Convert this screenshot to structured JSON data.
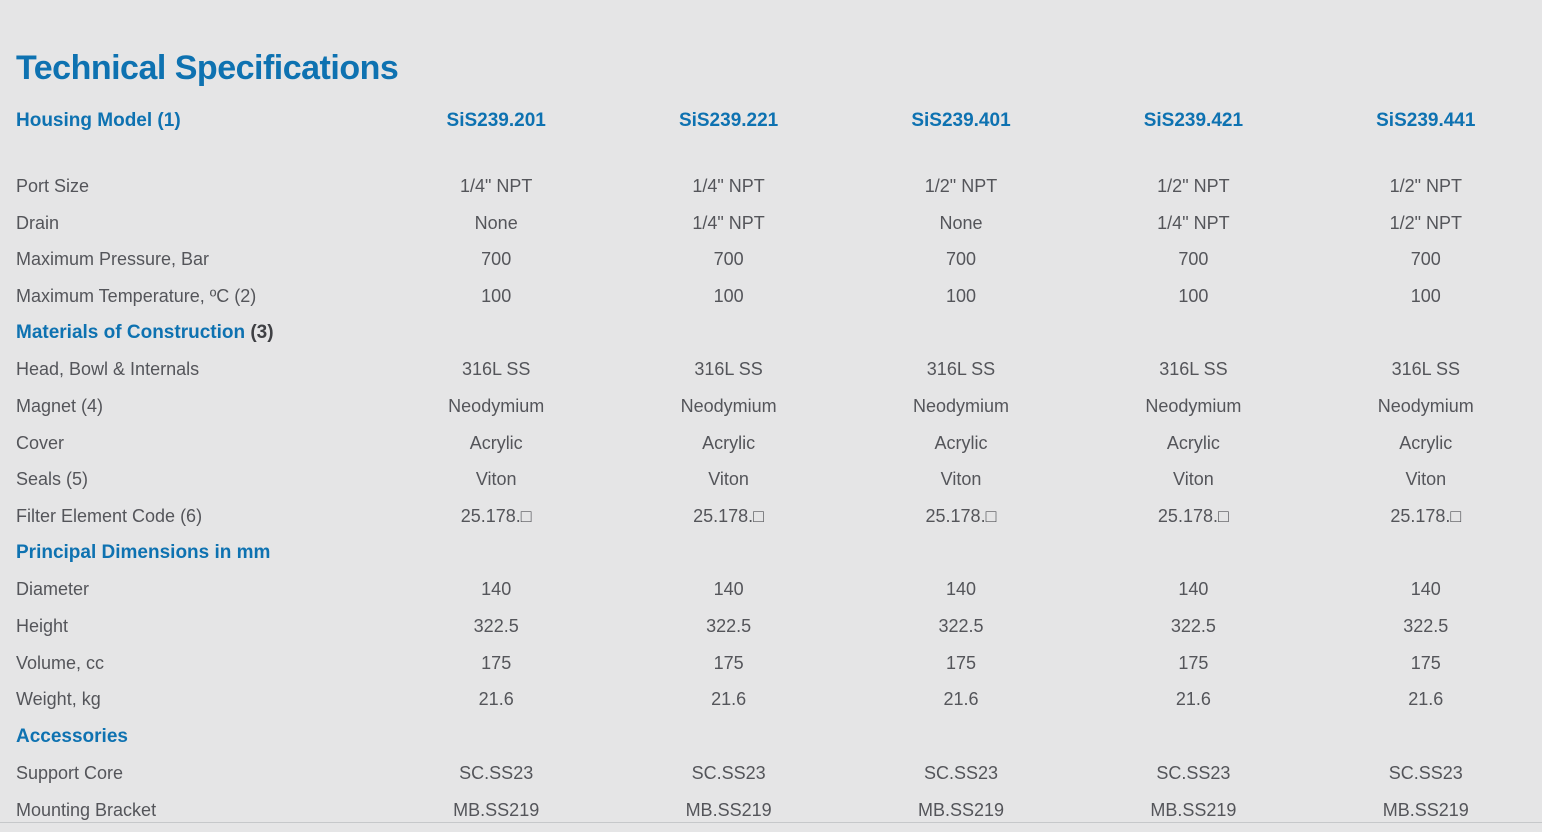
{
  "page": {
    "title": "Technical Specifications",
    "background_color": "#e5e5e6",
    "accent_color": "#0e72b1",
    "text_color": "#54555a"
  },
  "table": {
    "header": {
      "label": "Housing Model (1)",
      "models": [
        "SiS239.201",
        "SiS239.221",
        "SiS239.401",
        "SiS239.421",
        "SiS239.441"
      ]
    },
    "groups": [
      {
        "rows": [
          {
            "label": "Port Size",
            "values": [
              "1/4\" NPT",
              "1/4\" NPT",
              "1/2\" NPT",
              "1/2\" NPT",
              "1/2\" NPT"
            ]
          },
          {
            "label": "Drain",
            "values": [
              "None",
              "1/4\" NPT",
              "None",
              "1/4\" NPT",
              "1/2\" NPT"
            ]
          },
          {
            "label": "Maximum Pressure, Bar",
            "values": [
              "700",
              "700",
              "700",
              "700",
              "700"
            ]
          },
          {
            "label": "Maximum Temperature, ºC (2)",
            "values": [
              "100",
              "100",
              "100",
              "100",
              "100"
            ]
          }
        ]
      },
      {
        "heading": {
          "text": "Materials of Construction",
          "suffix": " (3)"
        },
        "rows": [
          {
            "label": "Head, Bowl & Internals",
            "values": [
              "316L SS",
              "316L SS",
              "316L SS",
              "316L SS",
              "316L SS"
            ]
          },
          {
            "label": "Magnet (4)",
            "values": [
              "Neodymium",
              "Neodymium",
              "Neodymium",
              "Neodymium",
              "Neodymium"
            ]
          },
          {
            "label": "Cover",
            "values": [
              "Acrylic",
              "Acrylic",
              "Acrylic",
              "Acrylic",
              "Acrylic"
            ]
          },
          {
            "label": "Seals (5)",
            "values": [
              "Viton",
              "Viton",
              "Viton",
              "Viton",
              "Viton"
            ]
          },
          {
            "label": "Filter Element Code (6)",
            "values": [
              "25.178.□",
              "25.178.□",
              "25.178.□",
              "25.178.□",
              "25.178.□"
            ]
          }
        ]
      },
      {
        "heading": {
          "text": "Principal Dimensions in mm",
          "suffix": ""
        },
        "rows": [
          {
            "label": "Diameter",
            "values": [
              "140",
              "140",
              "140",
              "140",
              "140"
            ]
          },
          {
            "label": "Height",
            "values": [
              "322.5",
              "322.5",
              "322.5",
              "322.5",
              "322.5"
            ]
          },
          {
            "label": "Volume, cc",
            "values": [
              "175",
              "175",
              "175",
              "175",
              "175"
            ]
          },
          {
            "label": "Weight, kg",
            "values": [
              "21.6",
              "21.6",
              "21.6",
              "21.6",
              "21.6"
            ]
          }
        ]
      },
      {
        "heading": {
          "text": "Accessories",
          "suffix": ""
        },
        "rows": [
          {
            "label": "Support Core",
            "values": [
              "SC.SS23",
              "SC.SS23",
              "SC.SS23",
              "SC.SS23",
              "SC.SS23"
            ]
          },
          {
            "label": "Mounting Bracket",
            "values": [
              "MB.SS219",
              "MB.SS219",
              "MB.SS219",
              "MB.SS219",
              "MB.SS219"
            ]
          }
        ]
      }
    ]
  }
}
